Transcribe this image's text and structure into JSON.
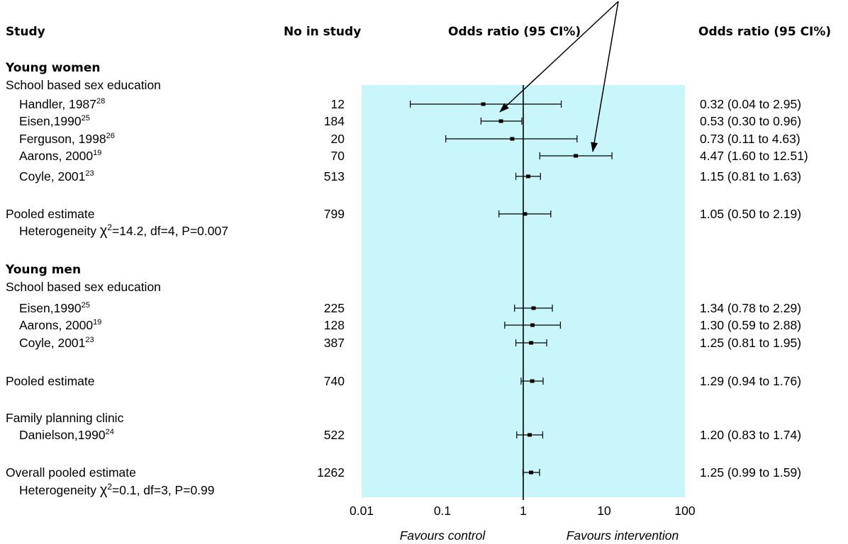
{
  "chart_data": {
    "type": "forest",
    "headers": {
      "study": "Study",
      "n": "No in study",
      "plot": "Odds ratio (95 CI%)",
      "estimate": "Odds ratio (95 CI%)"
    },
    "x_scale": "log",
    "xlim": [
      0.01,
      100
    ],
    "x_ticks": [
      "0.01",
      "0.1",
      "1",
      "10",
      "100"
    ],
    "reference_line": 1,
    "favours_left": "Favours control",
    "favours_right": "Favours intervention",
    "rows": [
      {
        "kind": "group",
        "label": "Young women"
      },
      {
        "kind": "subgroup",
        "label": "School based sex education"
      },
      {
        "kind": "study",
        "label": "Handler, 1987",
        "ref": "28",
        "n": "12",
        "or": 0.32,
        "lo": 0.04,
        "hi": 2.95,
        "ci_text": "0.32 (0.04 to 2.95)"
      },
      {
        "kind": "study",
        "label": "Eisen,1990",
        "ref": "25",
        "n": "184",
        "or": 0.53,
        "lo": 0.3,
        "hi": 0.96,
        "ci_text": "0.53 (0.30 to 0.96)"
      },
      {
        "kind": "study",
        "label": "Ferguson, 1998",
        "ref": "26",
        "n": "20",
        "or": 0.73,
        "lo": 0.11,
        "hi": 4.63,
        "ci_text": "0.73 (0.11 to 4.63)"
      },
      {
        "kind": "study",
        "label": "Aarons, 2000",
        "ref": "19",
        "n": "70",
        "or": 4.47,
        "lo": 1.6,
        "hi": 12.51,
        "ci_text": "4.47 (1.60 to 12.51)"
      },
      {
        "kind": "study",
        "label": "Coyle, 2001",
        "ref": "23",
        "n": "513",
        "or": 1.15,
        "lo": 0.81,
        "hi": 1.63,
        "ci_text": "1.15 (0.81 to 1.63)"
      },
      {
        "kind": "pooled",
        "label": "Pooled estimate",
        "n": "799",
        "or": 1.05,
        "lo": 0.5,
        "hi": 2.19,
        "ci_text": "1.05 (0.50 to 2.19)"
      },
      {
        "kind": "note",
        "label_pre": "Heterogeneity ",
        "chi": "χ",
        "chi_sup": "2",
        "label_post": "=14.2, df=4, P=0.007"
      },
      {
        "kind": "group",
        "label": "Young men"
      },
      {
        "kind": "subgroup",
        "label": "School based sex education"
      },
      {
        "kind": "study",
        "label": "Eisen,1990",
        "ref": "25",
        "n": "225",
        "or": 1.34,
        "lo": 0.78,
        "hi": 2.29,
        "ci_text": "1.34 (0.78 to 2.29)"
      },
      {
        "kind": "study",
        "label": "Aarons, 2000",
        "ref": "19",
        "n": "128",
        "or": 1.3,
        "lo": 0.59,
        "hi": 2.88,
        "ci_text": "1.30 (0.59 to 2.88)"
      },
      {
        "kind": "study",
        "label": "Coyle, 2001",
        "ref": "23",
        "n": "387",
        "or": 1.25,
        "lo": 0.81,
        "hi": 1.95,
        "ci_text": "1.25 (0.81 to 1.95)"
      },
      {
        "kind": "pooled",
        "label": "Pooled estimate",
        "n": "740",
        "or": 1.29,
        "lo": 0.94,
        "hi": 1.76,
        "ci_text": "1.29 (0.94 to 1.76)"
      },
      {
        "kind": "subgroup",
        "label": "Family planning clinic"
      },
      {
        "kind": "study",
        "label": "Danielson,1990",
        "ref": "24",
        "n": "522",
        "or": 1.2,
        "lo": 0.83,
        "hi": 1.74,
        "ci_text": "1.20 (0.83 to 1.74)"
      },
      {
        "kind": "pooled",
        "label": "Overall pooled estimate",
        "n": "1262",
        "or": 1.25,
        "lo": 0.99,
        "hi": 1.59,
        "ci_text": "1.25 (0.99 to 1.59)"
      },
      {
        "kind": "note",
        "label_pre": "Heterogeneity ",
        "chi": "χ",
        "chi_sup": "2",
        "label_post": "=0.1, df=3, P=0.99"
      }
    ],
    "annotation_arrows": {
      "from": "top-right",
      "targets": [
        "Eisen,1990",
        "Aarons, 2000"
      ]
    }
  },
  "colors": {
    "plot_background": "#c8f6fa",
    "text": "#000000",
    "marks": "#000000"
  }
}
